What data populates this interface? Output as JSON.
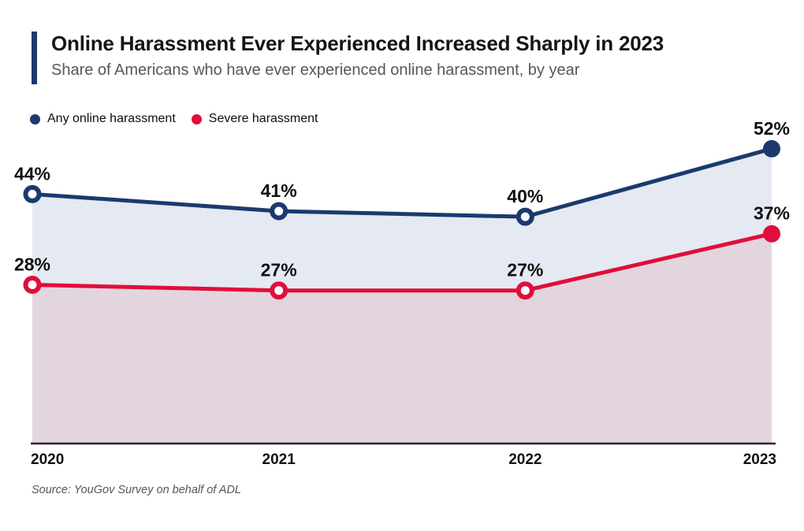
{
  "header": {
    "title": "Online Harassment Ever Experienced Increased Sharply in 2023",
    "subtitle": "Share of Americans who have ever experienced online harassment, by year"
  },
  "legend": {
    "items": [
      {
        "label": "Any online harassment",
        "color": "#1b3a6d"
      },
      {
        "label": "Severe harassment",
        "color": "#e00e3a"
      }
    ]
  },
  "source_note": "Source: YouGov Survey on behalf of ADL",
  "colors": {
    "accent_bar": "#1b3a6d",
    "navy_line": "#1b3a6d",
    "red_line": "#e00e3a",
    "navy_area_fill": "#e4e9f2",
    "red_area_fill": "#e3d5de",
    "axis_line": "#33222e",
    "data_label_text": "#101010",
    "axis_tick_text": "#111111",
    "subtitle_text": "#56575b",
    "source_text": "#55565a",
    "background": "#ffffff"
  },
  "chart_data": {
    "type": "line",
    "title": "Online Harassment Ever Experienced Increased Sharply in 2023",
    "subtitle": "Share of Americans who have ever experienced online harassment, by year",
    "categories": [
      "2020",
      "2021",
      "2022",
      "2023"
    ],
    "series": [
      {
        "name": "Any online harassment",
        "color": "#1b3a6d",
        "area_fill": "#e4e9f2",
        "values": [
          44,
          41,
          40,
          52
        ],
        "point_labels": [
          "44%",
          "41%",
          "40%",
          "52%"
        ],
        "marker_style": [
          "open",
          "open",
          "open",
          "filled"
        ]
      },
      {
        "name": "Severe harassment",
        "color": "#e00e3a",
        "area_fill": "#e3d5de",
        "values": [
          28,
          27,
          27,
          37
        ],
        "point_labels": [
          "28%",
          "27%",
          "27%",
          "37%"
        ],
        "marker_style": [
          "open",
          "open",
          "open",
          "filled"
        ]
      }
    ],
    "unit": "%",
    "xlabel": "",
    "ylabel": "",
    "ylim": [
      0,
      56
    ],
    "grid": false,
    "area": true,
    "legend_position": "top-left",
    "source": "Source: YouGov Survey on behalf of ADL"
  }
}
